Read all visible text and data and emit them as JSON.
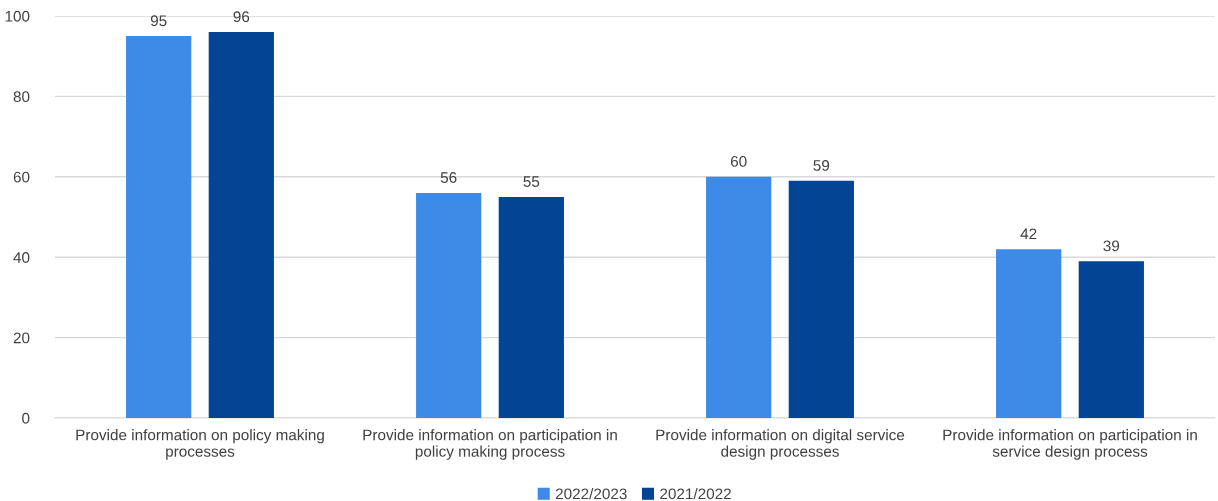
{
  "chart_data": {
    "type": "bar",
    "categories": [
      "Provide information on policy making processes",
      "Provide information on participation in policy making process",
      "Provide information on digital service design processes",
      "Provide information on participation in service design process"
    ],
    "series": [
      {
        "name": "2022/2023",
        "color": "#3d8be6",
        "values": [
          95,
          56,
          60,
          42
        ]
      },
      {
        "name": "2021/2022",
        "color": "#034494",
        "values": [
          96,
          55,
          59,
          39
        ]
      }
    ],
    "ylim": [
      0,
      100
    ],
    "yticks": [
      0,
      20,
      40,
      60,
      80,
      100
    ],
    "grid": "y",
    "legend": "bottom",
    "data_labels": true
  }
}
